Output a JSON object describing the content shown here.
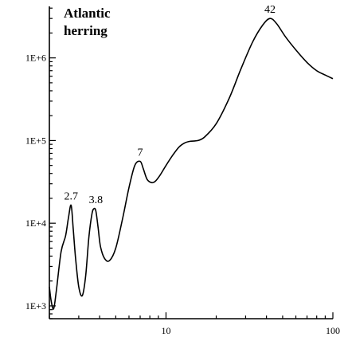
{
  "chart_data": {
    "type": "line",
    "title_lines": [
      "Atlantic",
      "herring"
    ],
    "xlabel": "",
    "ylabel": "",
    "x_scale": "log",
    "y_scale": "log",
    "xlim": [
      2,
      100
    ],
    "ylim": [
      700,
      4200000
    ],
    "grid": false,
    "x_ticks": [
      {
        "value": 10,
        "label": "10"
      },
      {
        "value": 100,
        "label": "100"
      }
    ],
    "y_ticks": [
      {
        "value": 1000,
        "label": "1E+3"
      },
      {
        "value": 10000,
        "label": "1E+4"
      },
      {
        "value": 100000,
        "label": "1E+5"
      },
      {
        "value": 1000000,
        "label": "1E+6"
      }
    ],
    "series": [
      {
        "x": [
          2.0,
          2.05,
          2.12,
          2.2,
          2.35,
          2.5,
          2.6,
          2.7,
          2.78,
          2.87,
          3.0,
          3.15,
          3.3,
          3.45,
          3.6,
          3.7,
          3.8,
          3.92,
          4.05,
          4.3,
          4.6,
          5.0,
          5.5,
          6.0,
          6.5,
          7.0,
          7.3,
          7.7,
          8.2,
          8.6,
          9.2,
          10.0,
          11.0,
          12.0,
          13.0,
          14.0,
          15.5,
          17.0,
          20.0,
          24.0,
          28.0,
          33.0,
          38.0,
          42.0,
          46.0,
          52.0,
          60.0,
          70.0,
          80.0,
          90.0,
          100.0
        ],
        "y": [
          1700,
          1150,
          920,
          1500,
          4500,
          7000,
          11500,
          16500,
          8500,
          3800,
          1700,
          1330,
          2300,
          6800,
          13000,
          15000,
          14000,
          8800,
          5200,
          3700,
          3550,
          5000,
          11500,
          27000,
          50000,
          56000,
          46000,
          34000,
          31000,
          32000,
          38000,
          50000,
          67000,
          84000,
          94000,
          98000,
          100000,
          110000,
          160000,
          330000,
          720000,
          1550000,
          2500000,
          3000000,
          2600000,
          1800000,
          1250000,
          880000,
          700000,
          620000,
          560000
        ]
      }
    ],
    "annotations": [
      {
        "text": "2.7",
        "x": 2.7,
        "y": 16500
      },
      {
        "text": "3.8",
        "x": 3.8,
        "y": 15000
      },
      {
        "text": "7",
        "x": 7.0,
        "y": 56000
      },
      {
        "text": "42",
        "x": 42.0,
        "y": 3000000
      }
    ]
  }
}
